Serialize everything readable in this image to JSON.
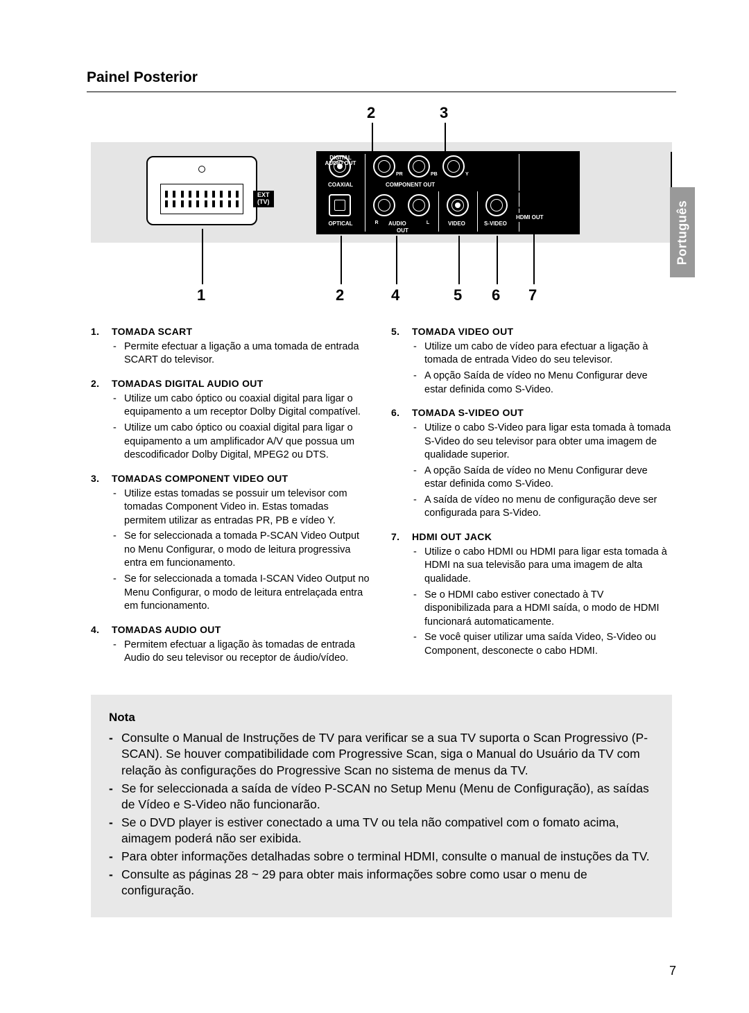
{
  "page": {
    "title": "Painel Posterior",
    "page_number": "7",
    "side_tab": "Português",
    "colors": {
      "text": "#000000",
      "background": "#ffffff",
      "panel_gray": "#e5e5e5",
      "nota_bg": "#e8e8e8",
      "tab_bg": "#999999",
      "tab_text": "#ffffff",
      "black": "#000000"
    }
  },
  "diagram": {
    "ext_label": "EXT\n(TV)",
    "digital_audio": "DIGITAL\nAUDIO OUT",
    "coaxial": "COAXIAL",
    "optical": "OPTICAL",
    "component_out": "COMPONENT OUT",
    "audio": "AUDIO",
    "out": "OUT",
    "video": "VIDEO",
    "svideo": "S-VIDEO",
    "hdmi": "HDMI OUT",
    "pr": "PR",
    "pb": "PB",
    "y": "Y",
    "r": "R",
    "l": "L",
    "callout_top": {
      "a": "2",
      "b": "3"
    },
    "callout_bottom": {
      "a": "1",
      "b": "2",
      "c": "4",
      "d": "5",
      "e": "6",
      "f": "7"
    }
  },
  "sections_left": [
    {
      "num": "1.",
      "title": "TOMADA SCART",
      "items": [
        "Permite efectuar a ligação a uma tomada de entrada SCART do televisor."
      ]
    },
    {
      "num": "2.",
      "title": "TOMADAS DIGITAL AUDIO OUT",
      "items": [
        "Utilize um cabo óptico ou coaxial digital para ligar o equipamento a um receptor Dolby Digital compatível.",
        "Utilize um cabo óptico ou coaxial digital para ligar o equipamento a um amplificador A/V que possua um descodificador Dolby Digital, MPEG2 ou DTS."
      ]
    },
    {
      "num": "3.",
      "title": "TOMADAS COMPONENT VIDEO OUT",
      "items": [
        "Utilize estas tomadas se possuir um televisor com tomadas Component Video in. Estas tomadas permitem utilizar as entradas PR, PB e vídeo Y.",
        "Se for seleccionada a tomada P-SCAN Video Output no Menu Configurar, o modo de leitura progressiva entra em funcionamento.",
        "Se for seleccionada a tomada I-SCAN Video Output no Menu Configurar, o modo de leitura entrelaçada entra em funcionamento."
      ]
    },
    {
      "num": "4.",
      "title": "TOMADAS AUDIO OUT",
      "items": [
        "Permitem efectuar a ligação às tomadas de entrada Audio do seu televisor ou receptor de áudio/vídeo."
      ]
    }
  ],
  "sections_right": [
    {
      "num": "5.",
      "title": "TOMADA VIDEO OUT",
      "items": [
        "Utilize um cabo de vídeo para efectuar a ligação à tomada de entrada Video do seu televisor.",
        "A opção Saída de vídeo no Menu Configurar deve estar definida como S-Video."
      ]
    },
    {
      "num": "6.",
      "title": "TOMADA S-VIDEO OUT",
      "items": [
        "Utilize o cabo S-Video para ligar esta tomada à tomada S-Video do seu televisor para obter uma imagem de qualidade superior.",
        "A opção Saída de vídeo no Menu Configurar deve estar definida como S-Video.",
        "A saída de vídeo no menu de configuração deve ser configurada para S-Video."
      ]
    },
    {
      "num": "7.",
      "title": "HDMI OUT JACK",
      "items": [
        "Utilize o cabo HDMI ou HDMI para ligar esta tomada à HDMI na sua televisão para uma imagem de alta qualidade.",
        "Se o HDMI cabo estiver conectado à TV disponibilizada para a HDMI saída, o modo de HDMI funcionará automaticamente.",
        "Se você quiser utilizar uma saída Video, S-Video ou Component, desconecte o cabo HDMI."
      ]
    }
  ],
  "nota": {
    "title": "Nota",
    "items": [
      "Consulte o Manual de Instruções de TV para verificar se a sua TV suporta o Scan Progressivo (P-SCAN). Se houver compatibilidade com Progressive Scan, siga o Manual do Usuário da TV com relação às configurações do Progressive Scan no sistema de menus da TV.",
      "Se for seleccionada a saída de vídeo P-SCAN no Setup Menu (Menu de Configuração), as saídas de Vídeo e S-Video não funcionarão.",
      "Se o DVD player is estiver conectado a uma TV ou tela não compativel com o fomato acima, aimagem poderá não ser exibida.",
      "Para obter informações detalhadas sobre o terminal HDMI, consulte o manual de instuções da TV.",
      "Consulte as páginas 28 ~ 29 para obter mais informações sobre como usar o menu de configuração."
    ]
  }
}
